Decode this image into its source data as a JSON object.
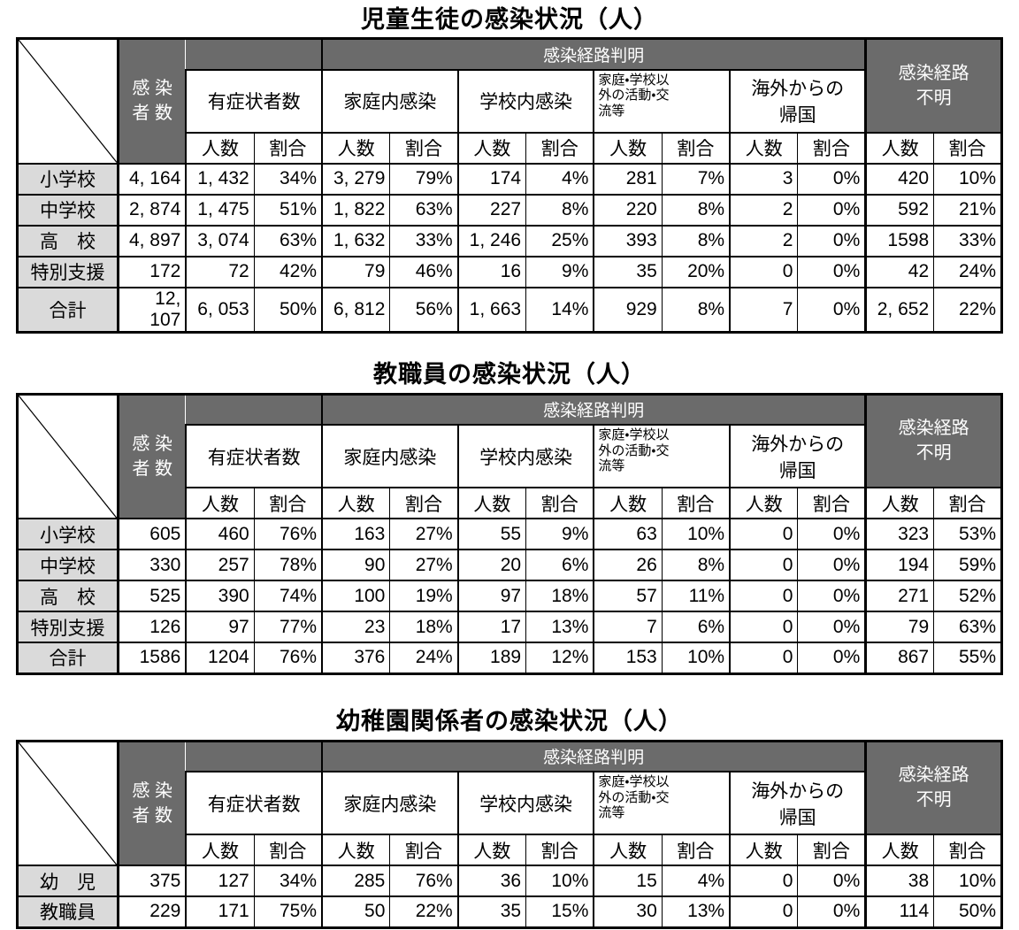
{
  "colors": {
    "header_dark_bg": "#6b6b6b",
    "header_dark_text": "#ffffff",
    "row_label_bg": "#dadada",
    "border": "#000000",
    "page_bg": "#ffffff"
  },
  "headers": {
    "infected_total": "感 染\n者 数",
    "route_known": "感染経路判明",
    "symptomatic": "有症状者数",
    "home": "家庭内感染",
    "school": "学校内感染",
    "outside": "家庭・学校以\n外の活動・交\n流等",
    "abroad": "海外からの\n帰国",
    "unknown": "感染経路\n不明",
    "count": "人数",
    "ratio": "割合"
  },
  "tables": [
    {
      "title": "児童生徒の感染状況（人）",
      "rows": [
        {
          "label": "小学校",
          "values": [
            "4, 164",
            "1, 432",
            "34%",
            "3, 279",
            "79%",
            "174",
            "4%",
            "281",
            "7%",
            "3",
            "0%",
            "420",
            "10%"
          ]
        },
        {
          "label": "中学校",
          "values": [
            "2, 874",
            "1, 475",
            "51%",
            "1, 822",
            "63%",
            "227",
            "8%",
            "220",
            "8%",
            "2",
            "0%",
            "592",
            "21%"
          ]
        },
        {
          "label": "高　校",
          "values": [
            "4, 897",
            "3, 074",
            "63%",
            "1, 632",
            "33%",
            "1, 246",
            "25%",
            "393",
            "8%",
            "2",
            "0%",
            "1598",
            "33%"
          ]
        },
        {
          "label": "特別支援",
          "values": [
            "172",
            "72",
            "42%",
            "79",
            "46%",
            "16",
            "9%",
            "35",
            "20%",
            "0",
            "0%",
            "42",
            "24%"
          ]
        },
        {
          "label": "合計",
          "values": [
            "12, 107",
            "6, 053",
            "50%",
            "6, 812",
            "56%",
            "1, 663",
            "14%",
            "929",
            "8%",
            "7",
            "0%",
            "2, 652",
            "22%"
          ]
        }
      ]
    },
    {
      "title": "教職員の感染状況（人）",
      "rows": [
        {
          "label": "小学校",
          "values": [
            "605",
            "460",
            "76%",
            "163",
            "27%",
            "55",
            "9%",
            "63",
            "10%",
            "0",
            "0%",
            "323",
            "53%"
          ]
        },
        {
          "label": "中学校",
          "values": [
            "330",
            "257",
            "78%",
            "90",
            "27%",
            "20",
            "6%",
            "26",
            "8%",
            "0",
            "0%",
            "194",
            "59%"
          ]
        },
        {
          "label": "高　校",
          "values": [
            "525",
            "390",
            "74%",
            "100",
            "19%",
            "97",
            "18%",
            "57",
            "11%",
            "0",
            "0%",
            "271",
            "52%"
          ]
        },
        {
          "label": "特別支援",
          "values": [
            "126",
            "97",
            "77%",
            "23",
            "18%",
            "17",
            "13%",
            "7",
            "6%",
            "0",
            "0%",
            "79",
            "63%"
          ]
        },
        {
          "label": "合計",
          "values": [
            "1586",
            "1204",
            "76%",
            "376",
            "24%",
            "189",
            "12%",
            "153",
            "10%",
            "0",
            "0%",
            "867",
            "55%"
          ]
        }
      ]
    },
    {
      "title": "幼稚園関係者の感染状況（人）",
      "rows": [
        {
          "label": "幼　児",
          "values": [
            "375",
            "127",
            "34%",
            "285",
            "76%",
            "36",
            "10%",
            "15",
            "4%",
            "0",
            "0%",
            "38",
            "10%"
          ]
        },
        {
          "label": "教職員",
          "values": [
            "229",
            "171",
            "75%",
            "50",
            "22%",
            "35",
            "15%",
            "30",
            "13%",
            "0",
            "0%",
            "114",
            "50%"
          ]
        }
      ]
    }
  ]
}
